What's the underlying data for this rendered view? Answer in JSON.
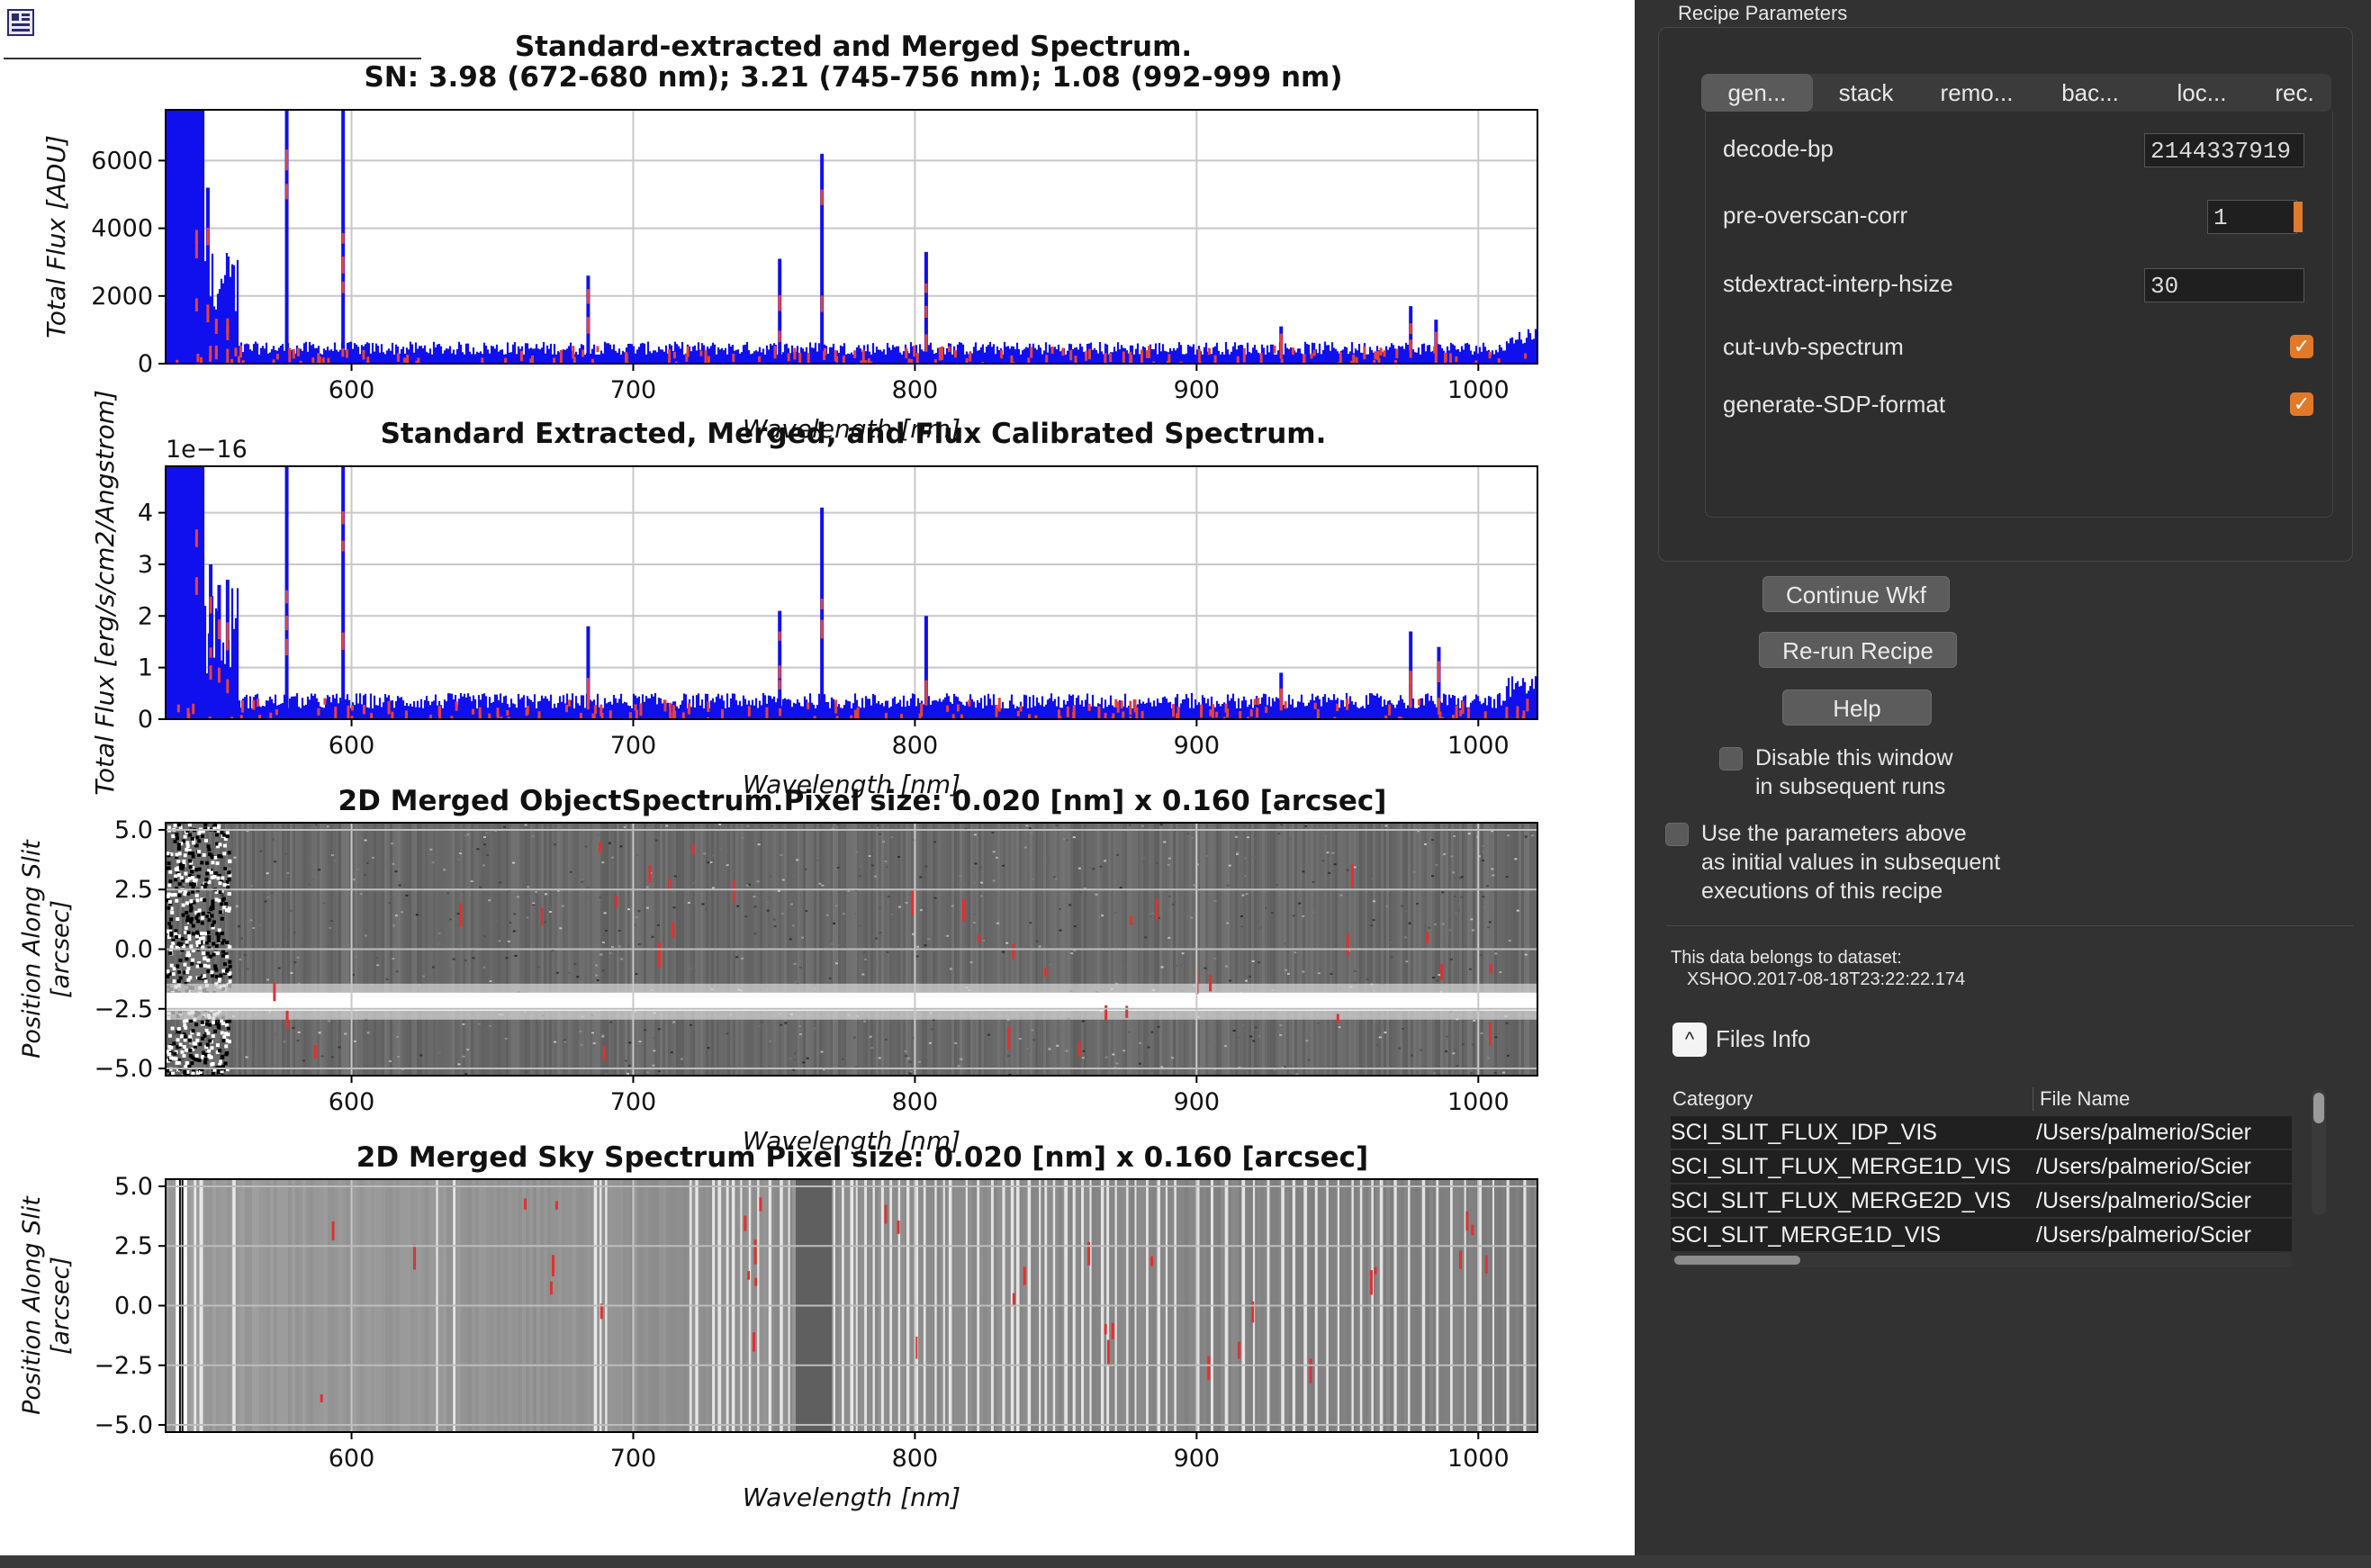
{
  "plots": [
    {
      "title_lines": [
        "Standard-extracted and Merged Spectrum.",
        "SN: 3.98 (672-680 nm); 3.21 (745-756 nm); 1.08 (992-999 nm)"
      ],
      "ylabel": "Total Flux [ADU]",
      "xlabel": "Wavelength [nm]",
      "offset_label": "",
      "xlim": [
        534,
        1021
      ],
      "ylim": [
        0,
        7500
      ],
      "xticks": [
        "600",
        "700",
        "800",
        "900",
        "1000"
      ],
      "yticks": [
        "0",
        "2000",
        "4000",
        "6000"
      ]
    },
    {
      "title_lines": [
        "Standard Extracted, Merged, and Flux Calibrated Spectrum."
      ],
      "ylabel": "Total Flux [erg/s/cm2/Angstrom]",
      "xlabel": "Wavelength [nm]",
      "offset_label": "1e−16",
      "xlim": [
        534,
        1021
      ],
      "ylim": [
        0,
        4.9
      ],
      "xticks": [
        "600",
        "700",
        "800",
        "900",
        "1000"
      ],
      "yticks": [
        "0",
        "1",
        "2",
        "3",
        "4"
      ]
    },
    {
      "title_lines": [
        "2D Merged ObjectSpectrum.Pixel size: 0.020 [nm] x 0.160 [arcsec]"
      ],
      "ylabel_lines": [
        "Position Along Slit",
        "[arcsec]"
      ],
      "xlabel": "Wavelength [nm]",
      "xlim": [
        534,
        1021
      ],
      "ylim": [
        -5.3,
        5.3
      ],
      "xticks": [
        "600",
        "700",
        "800",
        "900",
        "1000"
      ],
      "yticks": [
        "5.0",
        "2.5",
        "0.0",
        "−2.5",
        "−5.0"
      ]
    },
    {
      "title_lines": [
        "2D Merged Sky Spectrum Pixel size: 0.020 [nm] x 0.160 [arcsec]"
      ],
      "ylabel_lines": [
        "Position Along Slit",
        "[arcsec]"
      ],
      "xlabel": "Wavelength [nm]",
      "xlim": [
        534,
        1021
      ],
      "ylim": [
        -5.3,
        5.3
      ],
      "xticks": [
        "600",
        "700",
        "800",
        "900",
        "1000"
      ],
      "yticks": [
        "5.0",
        "2.5",
        "0.0",
        "−2.5",
        "−5.0"
      ]
    }
  ],
  "chart_data": [
    {
      "type": "line",
      "title": "Standard-extracted and Merged Spectrum. SN: 3.98 (672-680 nm); 3.21 (745-756 nm); 1.08 (992-999 nm)",
      "xlabel": "Wavelength [nm]",
      "ylabel": "Total Flux [ADU]",
      "ylim": [
        0,
        7500
      ],
      "colors": {
        "series": "#1010ee",
        "flags": "#e8413a"
      },
      "continuum": 450,
      "lines": [
        [
          545,
          7500
        ],
        [
          549,
          5200
        ],
        [
          552,
          1600
        ],
        [
          556,
          1700
        ],
        [
          577,
          7500
        ],
        [
          597,
          7500
        ],
        [
          684,
          2600
        ],
        [
          752,
          3100
        ],
        [
          767,
          6200
        ],
        [
          804,
          3300
        ],
        [
          930,
          1100
        ],
        [
          976,
          1700
        ],
        [
          985,
          1300
        ]
      ]
    },
    {
      "type": "line",
      "title": "Standard Extracted, Merged, and Flux Calibrated Spectrum.",
      "xlabel": "Wavelength [nm]",
      "ylabel": "Total Flux [erg/s/cm2/Angstrom]",
      "ylim": [
        0,
        4.9
      ],
      "colors": {
        "series": "#1010ee",
        "flags": "#e8413a"
      },
      "continuum": 0.35,
      "lines": [
        [
          545,
          4.9
        ],
        [
          550,
          3.0
        ],
        [
          553,
          2.6
        ],
        [
          556,
          2.7
        ],
        [
          577,
          4.9
        ],
        [
          597,
          4.9
        ],
        [
          684,
          1.8
        ],
        [
          752,
          2.1
        ],
        [
          767,
          4.1
        ],
        [
          804,
          2.0
        ],
        [
          930,
          0.9
        ],
        [
          976,
          1.7
        ],
        [
          986,
          1.4
        ]
      ]
    },
    {
      "type": "heatmap",
      "title": "2D Merged ObjectSpectrum.Pixel size: 0.020 [nm] x 0.160 [arcsec]",
      "xlabel": "Wavelength [nm]",
      "ylabel": "Position Along Slit [arcsec]",
      "trace_position": -2.2
    },
    {
      "type": "heatmap",
      "title": "2D Merged Sky Spectrum Pixel size: 0.020 [nm] x 0.160 [arcsec]",
      "xlabel": "Wavelength [nm]",
      "ylabel": "Position Along Slit [arcsec]"
    }
  ],
  "panel": {
    "group_title": "Recipe Parameters",
    "tabs": [
      "gen...",
      "stack",
      "remo...",
      "bac...",
      "loc...",
      "rec."
    ],
    "active_tab": 0,
    "params": [
      {
        "label": "decode-bp",
        "value": "2144337919"
      },
      {
        "label": "pre-overscan-corr",
        "value": "1"
      },
      {
        "label": "stdextract-interp-hsize",
        "value": "30"
      },
      {
        "label": "cut-uvb-spectrum",
        "checked": "✓"
      },
      {
        "label": "generate-SDP-format",
        "checked": "✓"
      }
    ],
    "buttons": {
      "continue": "Continue Wkf",
      "rerun": "Re-run Recipe",
      "help": "Help"
    },
    "disable_window": [
      "Disable this window",
      "in subsequent runs"
    ],
    "use_params": [
      "Use the parameters above",
      "as initial values in subsequent",
      "executions of this recipe"
    ],
    "dataset_label": "This data belongs to dataset:",
    "dataset_value": "XSHOO.2017-08-18T23:22:22.174",
    "files_info": "Files Info",
    "files_info_icon": "^",
    "table": {
      "headers": [
        "Category",
        "File Name"
      ],
      "rows": [
        [
          "SCI_SLIT_FLUX_IDP_VIS",
          "/Users/palmerio/Scier"
        ],
        [
          "SCI_SLIT_FLUX_MERGE1D_VIS",
          "/Users/palmerio/Scier"
        ],
        [
          "SCI_SLIT_FLUX_MERGE2D_VIS",
          "/Users/palmerio/Scier"
        ],
        [
          "SCI_SLIT_MERGE1D_VIS",
          "/Users/palmerio/Scier"
        ]
      ]
    }
  }
}
